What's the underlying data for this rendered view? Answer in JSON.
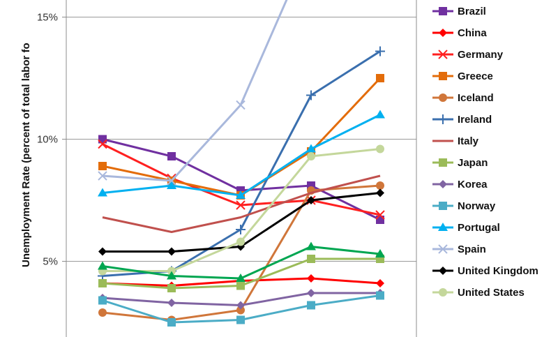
{
  "chart_data": {
    "type": "line",
    "title": "",
    "xlabel": "",
    "ylabel": "Unemployment Rate (percent of total labor fo",
    "x": [
      0,
      1,
      2,
      3,
      4
    ],
    "ylim": [
      1.9,
      15.7
    ],
    "yticks": [
      {
        "value": 5,
        "label": "5%"
      },
      {
        "value": 10,
        "label": "10%"
      },
      {
        "value": 15,
        "label": "15%"
      }
    ],
    "grid": "horizontal",
    "legend_position": "right",
    "series": [
      {
        "name": "Brazil",
        "color": "#7030a0",
        "marker": "square",
        "values": [
          10.0,
          9.3,
          7.9,
          8.1,
          6.7
        ]
      },
      {
        "name": "China",
        "color": "#ff0000",
        "marker": "diamond",
        "values": [
          4.1,
          4.0,
          4.2,
          4.3,
          4.1
        ]
      },
      {
        "name": "Germany",
        "color": "#ff2020",
        "marker": "x",
        "values": [
          9.8,
          8.4,
          7.3,
          7.5,
          6.9
        ]
      },
      {
        "name": "Greece",
        "color": "#e36c0a",
        "marker": "square",
        "values": [
          8.9,
          8.3,
          7.7,
          9.5,
          12.5
        ]
      },
      {
        "name": "Iceland",
        "color": "#d0763a",
        "marker": "circle",
        "values": [
          2.9,
          2.6,
          3.0,
          7.9,
          8.1
        ]
      },
      {
        "name": "Ireland",
        "color": "#3a6fae",
        "marker": "plus",
        "values": [
          4.4,
          4.6,
          6.3,
          11.8,
          13.6
        ]
      },
      {
        "name": "Italy",
        "color": "#c0504d",
        "marker": "none",
        "values": [
          6.8,
          6.2,
          6.8,
          7.8,
          8.5
        ]
      },
      {
        "name": "Japan",
        "color": "#9bbb59",
        "marker": "square",
        "values": [
          4.1,
          3.9,
          4.0,
          5.1,
          5.1
        ]
      },
      {
        "name": "Korea",
        "color": "#8064a2",
        "marker": "diamond",
        "values": [
          3.5,
          3.3,
          3.2,
          3.7,
          3.7
        ]
      },
      {
        "name": "Norway",
        "color": "#4bacc6",
        "marker": "square",
        "values": [
          3.4,
          2.5,
          2.6,
          3.2,
          3.6
        ]
      },
      {
        "name": "Portugal",
        "color": "#00b0f0",
        "marker": "triangle",
        "values": [
          7.8,
          8.1,
          7.7,
          9.6,
          11.0
        ]
      },
      {
        "name": "Spain",
        "color": "#a9b8dc",
        "marker": "x",
        "values": [
          8.5,
          8.3,
          11.4,
          18.0,
          null
        ]
      },
      {
        "name": "United Kingdom",
        "color": "#000000",
        "marker": "diamond",
        "values": [
          5.4,
          5.4,
          5.6,
          7.5,
          7.8
        ]
      },
      {
        "name": "United States",
        "color": "#c4d79b",
        "marker": "circle",
        "values": [
          4.6,
          4.6,
          5.8,
          9.3,
          9.6
        ]
      },
      {
        "name": "",
        "color": "#00a651",
        "marker": "triangle",
        "values": [
          4.8,
          4.4,
          4.3,
          5.6,
          5.3
        ]
      }
    ]
  }
}
